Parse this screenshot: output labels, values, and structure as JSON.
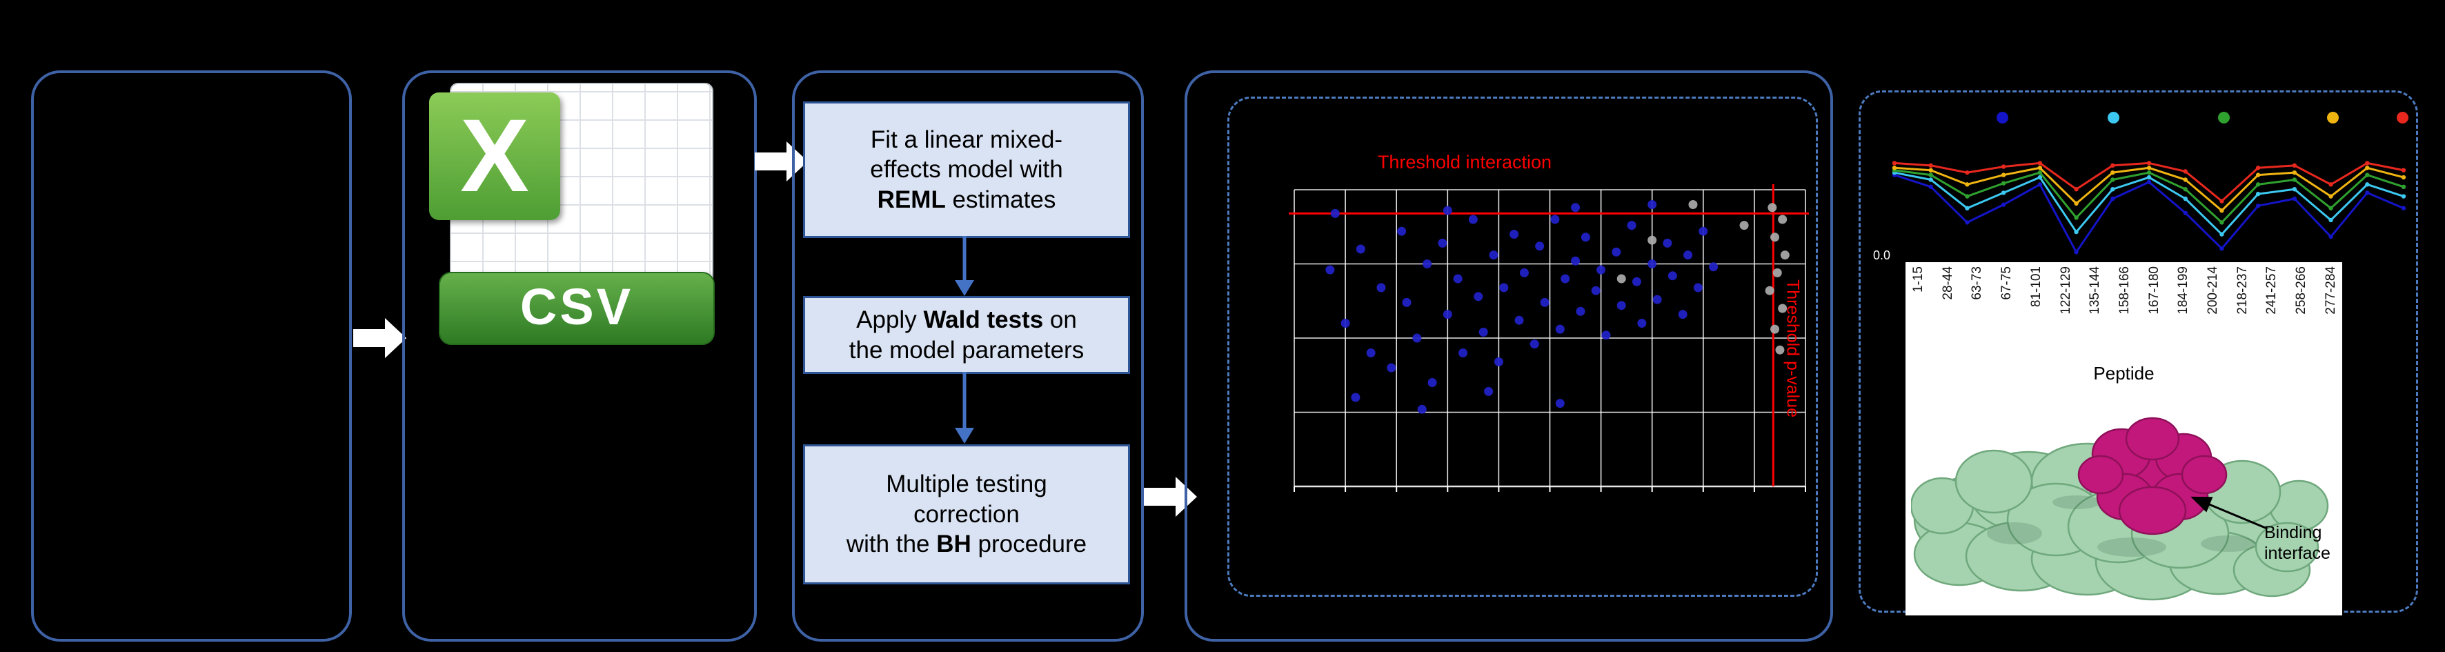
{
  "figure": {
    "background": "#000000",
    "panel_border_color": "#3E62A5",
    "dashed_border_color": "#4C7BC0",
    "accent_blue": "#4472C4"
  },
  "csv_icon": {
    "logo_letter": "X",
    "banner_label": "CSV"
  },
  "pipeline": {
    "steps": [
      {
        "lines": [
          [
            {
              "t": "Fit a linear mixed-"
            }
          ],
          [
            {
              "t": "effects model with"
            }
          ],
          [
            {
              "t": "REML",
              "b": true
            },
            {
              "t": " estimates"
            }
          ]
        ]
      },
      {
        "lines": [
          [
            {
              "t": "Apply "
            },
            {
              "t": "Wald tests",
              "b": true
            },
            {
              "t": " on"
            }
          ],
          [
            {
              "t": "the model parameters"
            }
          ]
        ]
      },
      {
        "lines": [
          [
            {
              "t": "Multiple testing"
            }
          ],
          [
            {
              "t": "correction"
            }
          ],
          [
            {
              "t": "with the "
            },
            {
              "t": "BH",
              "b": true
            },
            {
              "t": " procedure"
            }
          ]
        ]
      }
    ]
  },
  "chart_data": [
    {
      "type": "scatter",
      "title": "Threshold interaction",
      "title_color": "#FF0000",
      "vertical_threshold_label": "Threshold p-value",
      "grid": {
        "v_lines": 11,
        "h_lines": 5,
        "color": "#FFFFFF"
      },
      "thresholds": {
        "horizontal_y_frac": 0.08,
        "vertical_x_frac": 0.937,
        "color": "#FF0000"
      },
      "series": [
        {
          "name": "blue-points",
          "color": "#2222CC",
          "points": [
            [
              0.07,
              0.27
            ],
            [
              0.1,
              0.45
            ],
            [
              0.13,
              0.2
            ],
            [
              0.15,
              0.55
            ],
            [
              0.17,
              0.33
            ],
            [
              0.19,
              0.6
            ],
            [
              0.21,
              0.14
            ],
            [
              0.22,
              0.38
            ],
            [
              0.24,
              0.5
            ],
            [
              0.26,
              0.25
            ],
            [
              0.27,
              0.65
            ],
            [
              0.29,
              0.18
            ],
            [
              0.3,
              0.42
            ],
            [
              0.32,
              0.3
            ],
            [
              0.33,
              0.55
            ],
            [
              0.35,
              0.1
            ],
            [
              0.36,
              0.36
            ],
            [
              0.37,
              0.48
            ],
            [
              0.39,
              0.22
            ],
            [
              0.4,
              0.58
            ],
            [
              0.41,
              0.33
            ],
            [
              0.43,
              0.15
            ],
            [
              0.44,
              0.44
            ],
            [
              0.45,
              0.28
            ],
            [
              0.47,
              0.52
            ],
            [
              0.48,
              0.19
            ],
            [
              0.49,
              0.38
            ],
            [
              0.51,
              0.1
            ],
            [
              0.52,
              0.47
            ],
            [
              0.53,
              0.3
            ],
            [
              0.55,
              0.24
            ],
            [
              0.56,
              0.41
            ],
            [
              0.57,
              0.16
            ],
            [
              0.59,
              0.34
            ],
            [
              0.6,
              0.27
            ],
            [
              0.61,
              0.49
            ],
            [
              0.63,
              0.21
            ],
            [
              0.64,
              0.39
            ],
            [
              0.66,
              0.12
            ],
            [
              0.67,
              0.31
            ],
            [
              0.68,
              0.45
            ],
            [
              0.7,
              0.25
            ],
            [
              0.71,
              0.37
            ],
            [
              0.73,
              0.18
            ],
            [
              0.74,
              0.29
            ],
            [
              0.76,
              0.42
            ],
            [
              0.77,
              0.22
            ],
            [
              0.79,
              0.33
            ],
            [
              0.8,
              0.14
            ],
            [
              0.82,
              0.26
            ],
            [
              0.12,
              0.7
            ],
            [
              0.25,
              0.74
            ],
            [
              0.38,
              0.68
            ],
            [
              0.52,
              0.72
            ],
            [
              0.08,
              0.08
            ],
            [
              0.3,
              0.07
            ],
            [
              0.55,
              0.06
            ],
            [
              0.7,
              0.05
            ]
          ]
        },
        {
          "name": "grey-points",
          "color": "#ABABAB",
          "points": [
            [
              0.935,
              0.06
            ],
            [
              0.955,
              0.1
            ],
            [
              0.94,
              0.16
            ],
            [
              0.96,
              0.22
            ],
            [
              0.945,
              0.28
            ],
            [
              0.93,
              0.34
            ],
            [
              0.955,
              0.4
            ],
            [
              0.94,
              0.47
            ],
            [
              0.95,
              0.54
            ],
            [
              0.78,
              0.05
            ],
            [
              0.7,
              0.17
            ],
            [
              0.64,
              0.3
            ],
            [
              0.88,
              0.12
            ]
          ]
        }
      ]
    },
    {
      "type": "line",
      "categories": [
        "1-15",
        "28-44",
        "63-73",
        "67-75",
        "81-101",
        "122-129",
        "135-144",
        "158-166",
        "167-180",
        "184-199",
        "200-214",
        "218-237",
        "241-257",
        "258-266",
        "277-284"
      ],
      "xlabel": "Peptide",
      "y_tick_labels": [
        "0.0"
      ],
      "legend_dot_colors": [
        "#1414C8",
        "#3CC8F0",
        "#2FA12F",
        "#F0B411",
        "#E8281E"
      ],
      "series": [
        {
          "name": "series-blue",
          "color": "#1414C8",
          "values": [
            0.7,
            0.6,
            0.3,
            0.45,
            0.62,
            0.05,
            0.5,
            0.64,
            0.38,
            0.08,
            0.44,
            0.5,
            0.18,
            0.55,
            0.42
          ]
        },
        {
          "name": "series-cyan",
          "color": "#3CC8F0",
          "values": [
            0.72,
            0.66,
            0.42,
            0.55,
            0.68,
            0.22,
            0.58,
            0.68,
            0.5,
            0.2,
            0.54,
            0.58,
            0.32,
            0.62,
            0.52
          ]
        },
        {
          "name": "series-green",
          "color": "#2FA12F",
          "values": [
            0.74,
            0.7,
            0.52,
            0.63,
            0.72,
            0.34,
            0.66,
            0.72,
            0.58,
            0.3,
            0.62,
            0.66,
            0.42,
            0.7,
            0.6
          ]
        },
        {
          "name": "series-yellow",
          "color": "#F0B411",
          "values": [
            0.76,
            0.74,
            0.62,
            0.7,
            0.76,
            0.46,
            0.72,
            0.76,
            0.66,
            0.4,
            0.7,
            0.72,
            0.52,
            0.76,
            0.68
          ]
        },
        {
          "name": "series-red",
          "color": "#E8281E",
          "values": [
            0.8,
            0.78,
            0.72,
            0.77,
            0.8,
            0.58,
            0.78,
            0.8,
            0.73,
            0.48,
            0.76,
            0.78,
            0.62,
            0.8,
            0.74
          ]
        }
      ]
    }
  ],
  "result": {
    "binding_label": "Binding interface",
    "protein_colors": {
      "surface": "#A5D2AF",
      "surface_stroke": "#6FA87C",
      "interface": "#C2187C",
      "interface_stroke": "#8F1059"
    }
  }
}
